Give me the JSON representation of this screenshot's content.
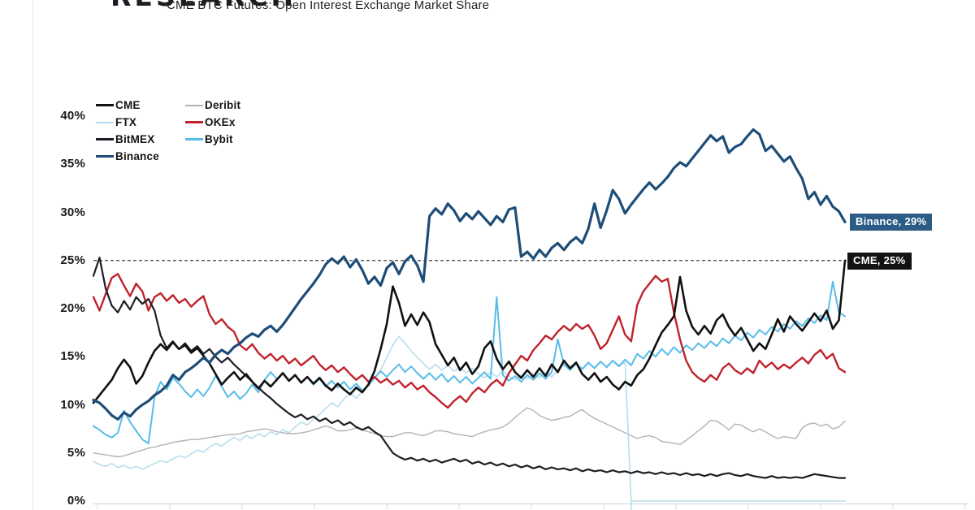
{
  "header": {
    "logo_text": "RESEARCH",
    "title": "CME BTC Futures: Open Interest Exchange Market Share"
  },
  "chart_data": {
    "type": "line",
    "title": "CME BTC Futures: Open Interest Exchange Market Share",
    "xlabel": "",
    "ylabel": "",
    "ylim": [
      0,
      40
    ],
    "grid": false,
    "legend_position": "top-left",
    "y_ticks": [
      "40%",
      "35%",
      "30%",
      "25%",
      "20%",
      "15%",
      "10%",
      "5%",
      "0%"
    ],
    "x_tick_labels_visible": false,
    "axis_color": "#d6e2ea",
    "reference_line": {
      "value": 25,
      "style": "dashed",
      "color": "#3f3f3f"
    },
    "annotations": [
      {
        "text": "Binance, 29%",
        "value": 29,
        "x": 1046,
        "bg": "#2b5c86"
      },
      {
        "text": "CME, 25%",
        "value": 25,
        "x": 1043,
        "bg": "#121212"
      }
    ],
    "series": [
      {
        "name": "CME",
        "color": "#111111",
        "line_width": 2.6,
        "z": 6,
        "end_value": 25,
        "values": [
          10.2,
          11.0,
          11.8,
          12.6,
          13.8,
          14.7,
          13.9,
          12.2,
          13.0,
          14.4,
          15.6,
          16.3,
          15.7,
          16.5,
          15.8,
          16.2,
          15.4,
          15.9,
          15.1,
          14.3,
          13.2,
          12.1,
          12.8,
          13.4,
          12.6,
          13.2,
          12.4,
          11.7,
          12.5,
          11.9,
          12.6,
          13.3,
          12.5,
          13.1,
          12.3,
          12.9,
          12.2,
          12.8,
          12.0,
          11.5,
          12.2,
          11.6,
          11.1,
          11.8,
          11.3,
          12.1,
          13.5,
          15.8,
          18.4,
          22.3,
          20.6,
          18.2,
          19.4,
          18.3,
          19.6,
          18.6,
          16.3,
          15.2,
          14.1,
          14.9,
          13.6,
          14.4,
          13.2,
          14.0,
          15.9,
          16.6,
          14.8,
          13.7,
          14.5,
          13.4,
          12.8,
          13.6,
          12.9,
          13.8,
          13.0,
          14.2,
          13.4,
          14.6,
          13.8,
          14.4,
          13.2,
          12.6,
          13.3,
          12.4,
          12.9,
          12.1,
          11.6,
          12.4,
          12.0,
          13.1,
          13.7,
          14.8,
          16.2,
          17.5,
          18.3,
          19.2,
          23.3,
          19.8,
          18.1,
          17.3,
          18.2,
          17.4,
          18.8,
          19.4,
          18.1,
          17.2,
          18.0,
          16.8,
          15.6,
          16.4,
          15.8,
          17.3,
          18.9,
          17.6,
          19.2,
          18.4,
          17.7,
          18.6,
          19.5,
          18.7,
          19.8,
          17.9,
          18.8,
          25.0
        ]
      },
      {
        "name": "FTX",
        "color": "#b9dcec",
        "line_width": 1.6,
        "z": 2,
        "collapse_overshoot": true,
        "values": [
          4.1,
          3.8,
          3.6,
          3.9,
          3.5,
          3.7,
          3.4,
          3.6,
          3.3,
          3.6,
          3.9,
          4.2,
          4.0,
          4.4,
          4.7,
          4.5,
          4.9,
          5.3,
          5.1,
          5.6,
          6.0,
          5.7,
          6.2,
          6.6,
          6.3,
          6.8,
          6.5,
          7.0,
          6.7,
          7.2,
          6.9,
          7.4,
          7.1,
          7.7,
          8.2,
          7.9,
          8.5,
          9.0,
          9.6,
          10.2,
          9.8,
          10.6,
          11.2,
          10.7,
          11.4,
          12.0,
          12.8,
          13.6,
          14.9,
          16.2,
          17.1,
          16.4,
          15.6,
          14.9,
          14.3,
          13.7,
          14.2,
          13.6,
          14.1,
          13.5,
          13.9,
          13.3,
          13.8,
          13.2,
          12.8,
          13.4,
          12.9,
          13.5,
          13.0,
          12.6,
          13.1,
          12.7,
          13.2,
          12.8,
          13.4,
          12.9,
          13.6,
          14.1,
          13.7,
          14.2,
          13.8,
          14.3,
          13.9,
          14.5,
          14.0,
          14.6,
          14.1,
          14.4,
          0,
          0,
          0,
          0,
          0,
          0,
          0,
          0,
          0,
          0,
          0,
          0,
          0,
          0,
          0,
          0,
          0,
          0,
          0,
          0,
          0,
          0,
          0,
          0,
          0,
          0,
          0,
          0,
          0,
          0,
          0,
          0,
          0,
          0,
          0,
          0
        ]
      },
      {
        "name": "BitMEX",
        "color": "#1d1d25",
        "line_width": 2.2,
        "z": 5,
        "values": [
          23.4,
          25.3,
          22.1,
          20.3,
          19.6,
          20.8,
          19.9,
          21.2,
          20.5,
          21.0,
          19.8,
          17.2,
          15.9,
          16.6,
          15.8,
          16.4,
          15.6,
          16.1,
          15.3,
          15.8,
          15.0,
          14.4,
          14.9,
          14.2,
          13.6,
          13.0,
          12.4,
          11.8,
          11.2,
          10.7,
          10.1,
          9.6,
          9.1,
          8.7,
          9.0,
          8.5,
          8.8,
          8.3,
          8.6,
          8.1,
          8.4,
          7.9,
          8.2,
          7.7,
          7.4,
          7.7,
          7.2,
          6.8,
          5.9,
          5.0,
          4.6,
          4.3,
          4.5,
          4.2,
          4.4,
          4.1,
          4.3,
          4.0,
          4.2,
          4.4,
          4.1,
          4.3,
          3.9,
          4.1,
          3.8,
          4.0,
          3.7,
          3.9,
          3.6,
          3.8,
          3.5,
          3.7,
          3.4,
          3.6,
          3.3,
          3.5,
          3.3,
          3.4,
          3.2,
          3.4,
          3.1,
          3.3,
          3.1,
          3.2,
          3.0,
          3.2,
          3.0,
          3.1,
          2.9,
          3.1,
          2.9,
          3.0,
          2.8,
          3.0,
          2.8,
          2.9,
          2.7,
          2.9,
          2.7,
          2.8,
          2.6,
          2.8,
          2.6,
          2.8,
          2.9,
          2.7,
          2.6,
          2.8,
          2.6,
          2.5,
          2.4,
          2.6,
          2.4,
          2.5,
          2.4,
          2.5,
          2.4,
          2.6,
          2.8,
          2.7,
          2.6,
          2.5,
          2.4,
          2.4
        ]
      },
      {
        "name": "Binance",
        "color": "#1e4d78",
        "line_width": 3.2,
        "z": 7,
        "end_value": 29,
        "values": [
          10.5,
          10.2,
          9.6,
          8.9,
          8.5,
          9.2,
          8.8,
          9.5,
          10.0,
          10.4,
          11.0,
          11.4,
          12.0,
          13.1,
          12.6,
          13.4,
          13.8,
          14.3,
          14.9,
          14.4,
          15.2,
          15.7,
          15.3,
          16.0,
          16.4,
          17.0,
          17.4,
          17.1,
          17.8,
          18.2,
          17.6,
          18.3,
          19.2,
          20.1,
          21.0,
          21.8,
          22.6,
          23.5,
          24.6,
          25.2,
          24.7,
          25.4,
          24.3,
          25.1,
          24.0,
          22.6,
          23.3,
          22.4,
          24.2,
          24.8,
          23.6,
          24.9,
          25.5,
          24.5,
          22.8,
          29.6,
          30.4,
          29.8,
          30.9,
          30.2,
          29.1,
          29.9,
          29.3,
          30.1,
          29.4,
          28.7,
          29.6,
          29.0,
          30.3,
          30.5,
          25.4,
          25.9,
          25.2,
          26.1,
          25.4,
          26.3,
          26.8,
          26.1,
          26.9,
          27.4,
          26.8,
          28.3,
          30.9,
          28.4,
          30.2,
          32.3,
          31.4,
          29.9,
          30.8,
          31.6,
          32.4,
          33.1,
          32.4,
          33.0,
          33.7,
          34.6,
          35.2,
          34.8,
          35.6,
          36.4,
          37.2,
          38.0,
          37.4,
          37.9,
          36.2,
          36.8,
          37.1,
          37.9,
          38.6,
          38.1,
          36.4,
          36.9,
          36.1,
          35.3,
          35.8,
          34.6,
          33.5,
          31.4,
          32.1,
          30.8,
          31.7,
          30.6,
          30.1,
          29.0
        ]
      },
      {
        "name": "Deribit",
        "color": "#b3b3b3",
        "line_width": 1.4,
        "z": 1,
        "values": [
          5.0,
          4.9,
          4.8,
          4.7,
          4.6,
          4.7,
          4.9,
          5.1,
          5.3,
          5.5,
          5.6,
          5.8,
          5.9,
          6.1,
          6.2,
          6.3,
          6.4,
          6.4,
          6.5,
          6.6,
          6.7,
          6.8,
          6.9,
          6.9,
          7.0,
          7.2,
          7.3,
          7.4,
          7.5,
          7.4,
          7.2,
          7.1,
          7.0,
          7.0,
          7.1,
          7.2,
          7.4,
          7.6,
          7.8,
          7.6,
          7.3,
          7.3,
          7.4,
          7.6,
          7.4,
          7.2,
          7.0,
          6.8,
          6.7,
          6.7,
          6.9,
          7.1,
          7.1,
          6.9,
          6.8,
          7.0,
          7.3,
          7.3,
          7.2,
          7.0,
          6.9,
          6.8,
          6.7,
          7.0,
          7.2,
          7.4,
          7.5,
          7.7,
          8.1,
          8.7,
          9.2,
          9.7,
          9.4,
          8.9,
          8.6,
          8.4,
          8.5,
          8.7,
          8.8,
          9.2,
          9.5,
          9.0,
          8.6,
          8.3,
          8.0,
          7.7,
          7.4,
          7.1,
          6.8,
          6.5,
          6.7,
          6.8,
          6.6,
          6.2,
          6.1,
          6.0,
          5.9,
          6.3,
          6.8,
          7.3,
          7.8,
          8.4,
          8.3,
          7.9,
          7.4,
          8.0,
          7.9,
          7.5,
          7.2,
          7.5,
          7.2,
          6.8,
          6.5,
          6.7,
          6.6,
          6.5,
          7.6,
          8.0,
          8.1,
          7.8,
          8.0,
          7.5,
          7.7,
          8.3
        ]
      },
      {
        "name": "OKEx",
        "color": "#c0232c",
        "line_width": 2.4,
        "z": 4,
        "values": [
          21.2,
          19.8,
          21.5,
          23.2,
          23.6,
          22.4,
          21.3,
          22.6,
          21.8,
          19.8,
          21.2,
          21.6,
          20.8,
          21.4,
          20.6,
          21.0,
          20.2,
          20.8,
          21.3,
          19.4,
          18.4,
          18.9,
          18.1,
          17.6,
          16.2,
          15.7,
          16.3,
          15.4,
          14.8,
          15.3,
          14.6,
          15.1,
          14.3,
          14.8,
          14.1,
          14.6,
          15.1,
          14.2,
          13.6,
          14.1,
          13.4,
          13.9,
          13.2,
          12.6,
          13.1,
          12.4,
          12.9,
          12.3,
          12.7,
          12.1,
          12.5,
          11.8,
          12.3,
          11.6,
          12.0,
          11.3,
          10.8,
          10.2,
          9.7,
          10.4,
          10.9,
          10.3,
          11.2,
          11.8,
          11.3,
          12.1,
          12.6,
          12.0,
          13.3,
          14.2,
          15.1,
          14.6,
          15.7,
          16.4,
          17.2,
          16.8,
          17.6,
          18.2,
          17.7,
          18.4,
          17.9,
          18.3,
          17.2,
          15.8,
          16.4,
          17.8,
          19.2,
          17.3,
          16.6,
          20.4,
          21.8,
          22.6,
          23.4,
          22.8,
          23.1,
          19.6,
          16.8,
          14.6,
          13.4,
          12.8,
          12.4,
          13.1,
          12.6,
          13.8,
          14.3,
          13.6,
          13.2,
          13.8,
          13.3,
          14.6,
          13.9,
          14.4,
          13.7,
          14.2,
          13.8,
          14.4,
          14.9,
          14.3,
          15.2,
          15.7,
          14.8,
          15.3,
          13.8,
          13.4
        ]
      },
      {
        "name": "Bybit",
        "color": "#57bde9",
        "line_width": 2.0,
        "z": 3,
        "values": [
          7.8,
          7.4,
          6.9,
          6.6,
          7.1,
          9.4,
          8.2,
          7.3,
          6.4,
          6.0,
          10.8,
          12.4,
          11.6,
          12.8,
          12.2,
          11.4,
          10.8,
          11.6,
          10.9,
          11.8,
          13.0,
          11.9,
          10.8,
          11.4,
          10.6,
          11.2,
          12.1,
          11.3,
          12.6,
          13.4,
          12.7,
          13.3,
          12.5,
          13.1,
          12.3,
          12.9,
          12.1,
          12.7,
          11.9,
          12.5,
          11.8,
          12.4,
          11.6,
          12.2,
          11.5,
          12.0,
          12.8,
          13.5,
          12.9,
          13.6,
          14.2,
          13.4,
          14.0,
          13.3,
          12.7,
          13.3,
          12.6,
          13.2,
          12.4,
          13.0,
          12.3,
          12.9,
          12.2,
          12.8,
          13.4,
          12.7,
          21.2,
          13.1,
          12.5,
          13.0,
          12.4,
          13.1,
          12.6,
          13.3,
          12.7,
          13.4,
          16.8,
          14.2,
          13.6,
          14.3,
          13.7,
          14.4,
          13.8,
          14.5,
          13.9,
          14.6,
          14.0,
          14.7,
          14.1,
          15.3,
          14.8,
          15.6,
          15.0,
          15.8,
          15.2,
          16.0,
          15.4,
          16.2,
          15.7,
          16.4,
          15.9,
          16.6,
          16.1,
          16.9,
          16.4,
          17.2,
          16.7,
          17.5,
          17.0,
          17.8,
          17.3,
          18.1,
          17.6,
          18.4,
          17.9,
          18.7,
          18.2,
          19.0,
          18.5,
          19.3,
          18.8,
          22.8,
          19.6,
          19.2
        ]
      }
    ]
  }
}
